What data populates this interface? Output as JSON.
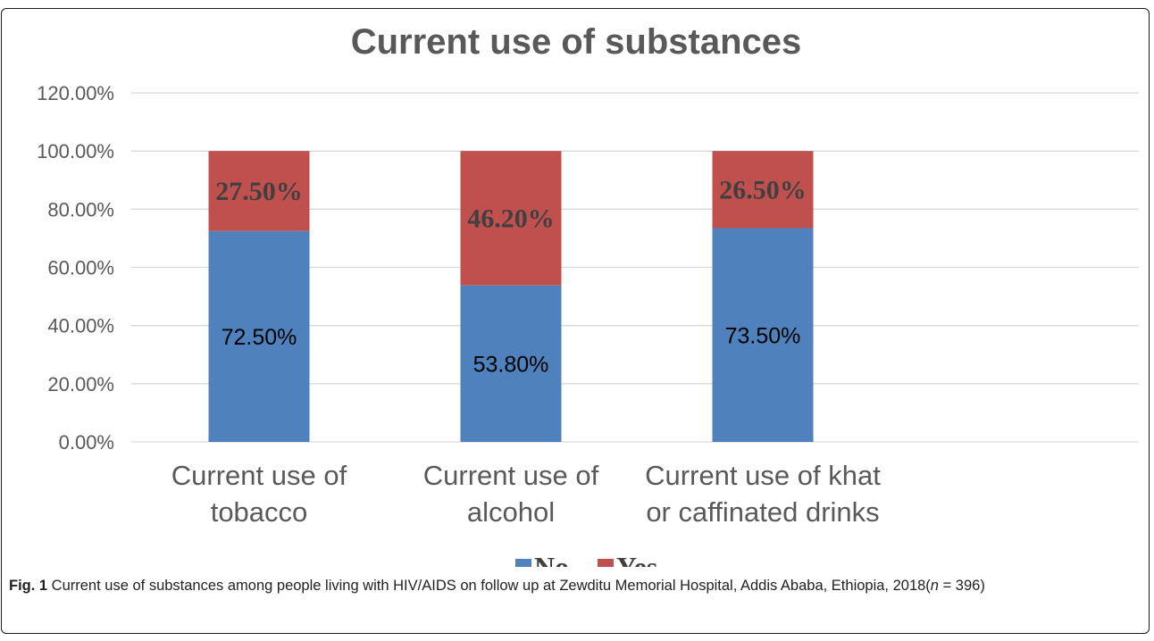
{
  "chart_data": {
    "type": "bar",
    "stacked": true,
    "title": "Current use of substances",
    "categories": [
      [
        "Current use of",
        "tobacco"
      ],
      [
        "Current use of",
        "alcohol"
      ],
      [
        "Current use of khat",
        "or caffinated drinks"
      ]
    ],
    "series": [
      {
        "name": "No",
        "values": [
          72.5,
          53.8,
          73.5
        ],
        "labels": [
          "72.50%",
          "53.80%",
          "73.50%"
        ],
        "color": "#4f81bd"
      },
      {
        "name": "Yes",
        "values": [
          27.5,
          46.2,
          26.5
        ],
        "labels": [
          "27.50%",
          "46.20%",
          "26.50%"
        ],
        "color": "#c0504d"
      }
    ],
    "ylim": [
      0,
      120
    ],
    "yticks": [
      "0.00%",
      "20.00%",
      "40.00%",
      "60.00%",
      "80.00%",
      "100.00%",
      "120.00%"
    ],
    "grid": true,
    "legend": "bottom"
  },
  "caption": {
    "label": "Fig. 1",
    "text": " Current use of substances among people living with HIV/AIDS on follow up at Zewditu Memorial Hospital, Addis Ababa, Ethiopia, 2018(",
    "n_symbol": "n",
    "n_value": " = 396)"
  }
}
